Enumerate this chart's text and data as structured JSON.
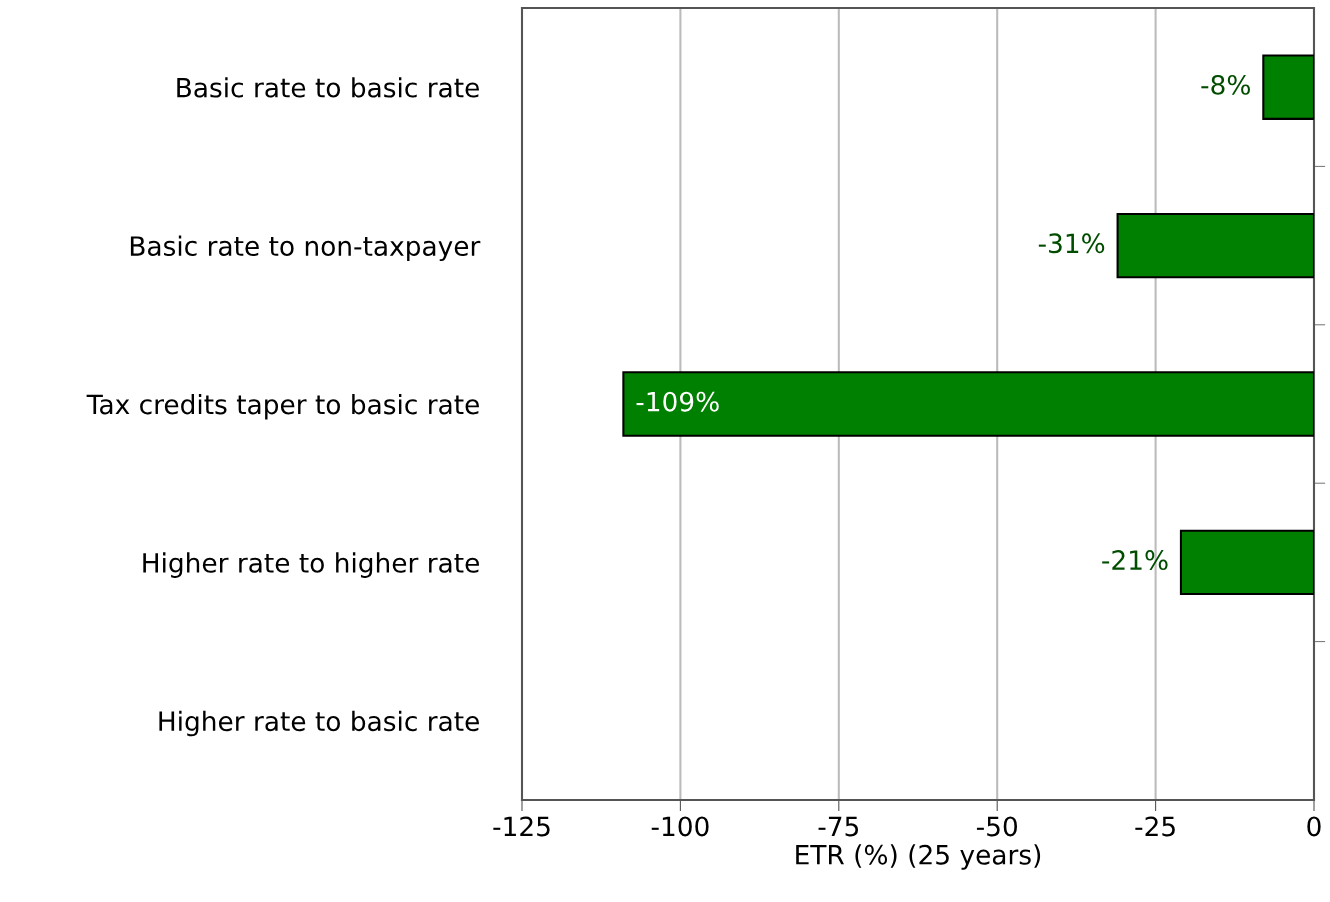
{
  "chart_data": {
    "type": "bar",
    "orientation": "horizontal",
    "xlabel": "ETR (%) (25 years)",
    "categories": [
      "Basic rate to basic rate",
      "Basic rate to non-taxpayer",
      "Tax credits taper to basic rate",
      "Higher rate to higher rate",
      "Higher rate to basic rate"
    ],
    "values": [
      -8,
      -31,
      -109,
      -21,
      null
    ],
    "value_labels": [
      "-8%",
      "-31%",
      "-109%",
      "-21%",
      null
    ],
    "color": "#008000",
    "xlim": [
      -125,
      0
    ],
    "xticks": [
      -125,
      -100,
      -75,
      -50,
      -25,
      0
    ],
    "grid": "x",
    "legend": false
  }
}
